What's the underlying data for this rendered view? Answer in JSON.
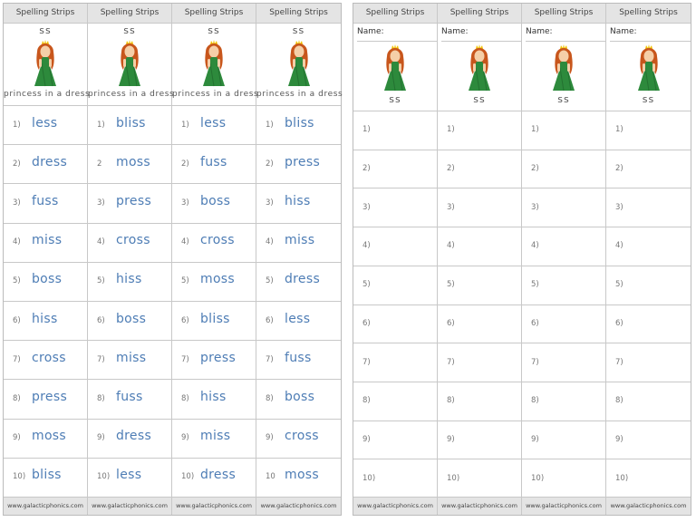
{
  "left_page": {
    "columns": [
      {
        "header": "Spelling Strips",
        "letters": "ss",
        "caption": "princess in a dress",
        "items": [
          {
            "number": "1)",
            "word": "less"
          },
          {
            "number": "2)",
            "word": "dress"
          },
          {
            "number": "3)",
            "word": "fuss"
          },
          {
            "number": "4)",
            "word": "miss"
          },
          {
            "number": "5)",
            "word": "boss"
          },
          {
            "number": "6)",
            "word": "hiss"
          },
          {
            "number": "7)",
            "word": "cross"
          },
          {
            "number": "8)",
            "word": "press"
          },
          {
            "number": "9)",
            "word": "moss"
          },
          {
            "number": "10)",
            "word": "bliss"
          }
        ],
        "footer": "www.galacticphonics.com"
      },
      {
        "header": "Spelling Strips",
        "letters": "ss",
        "caption": "princess in a dress",
        "items": [
          {
            "number": "1)",
            "word": "bliss"
          },
          {
            "number": "2",
            "word": "moss"
          },
          {
            "number": "3)",
            "word": "press"
          },
          {
            "number": "4)",
            "word": "cross"
          },
          {
            "number": "5)",
            "word": "hiss"
          },
          {
            "number": "6)",
            "word": "boss"
          },
          {
            "number": "7)",
            "word": "miss"
          },
          {
            "number": "8)",
            "word": "fuss"
          },
          {
            "number": "9)",
            "word": "dress"
          },
          {
            "number": "10)",
            "word": "less"
          }
        ],
        "footer": "www.galacticphonics.com"
      },
      {
        "header": "Spelling Strips",
        "letters": "ss",
        "caption": "princess in a dress",
        "items": [
          {
            "number": "1)",
            "word": "less"
          },
          {
            "number": "2)",
            "word": "fuss"
          },
          {
            "number": "3)",
            "word": "boss"
          },
          {
            "number": "4)",
            "word": "cross"
          },
          {
            "number": "5)",
            "word": "moss"
          },
          {
            "number": "6)",
            "word": "bliss"
          },
          {
            "number": "7)",
            "word": "press"
          },
          {
            "number": "8)",
            "word": "hiss"
          },
          {
            "number": "9)",
            "word": "miss"
          },
          {
            "number": "10)",
            "word": "dress"
          }
        ],
        "footer": "www.galacticphonics.com"
      },
      {
        "header": "Spelling Strips",
        "letters": "ss",
        "caption": "princess in a dress",
        "items": [
          {
            "number": "1)",
            "word": "bliss"
          },
          {
            "number": "2)",
            "word": "press"
          },
          {
            "number": "3)",
            "word": "hiss"
          },
          {
            "number": "4)",
            "word": "miss"
          },
          {
            "number": "5)",
            "word": "dress"
          },
          {
            "number": "6)",
            "word": "less"
          },
          {
            "number": "7)",
            "word": "fuss"
          },
          {
            "number": "8)",
            "word": "boss"
          },
          {
            "number": "9)",
            "word": "cross"
          },
          {
            "number": "10",
            "word": "moss"
          }
        ],
        "footer": "www.galacticphonics.com"
      }
    ]
  },
  "right_page": {
    "columns": [
      {
        "header": "Spelling Strips",
        "name_label": "Name:",
        "letters": "ss",
        "numbers": [
          "1)",
          "2)",
          "3)",
          "4)",
          "5)",
          "6)",
          "7)",
          "8)",
          "9)",
          "10)"
        ],
        "footer": "www.galacticphonics.com"
      },
      {
        "header": "Spelling Strips",
        "name_label": "Name:",
        "letters": "ss",
        "numbers": [
          "1)",
          "2)",
          "3)",
          "4)",
          "5)",
          "6)",
          "7)",
          "8)",
          "9)",
          "10)"
        ],
        "footer": "www.galacticphonics.com"
      },
      {
        "header": "Spelling Strips",
        "name_label": "Name:",
        "letters": "ss",
        "numbers": [
          "1)",
          "2)",
          "3)",
          "4)",
          "5)",
          "6)",
          "7)",
          "8)",
          "9)",
          "10)"
        ],
        "footer": "www.galacticphonics.com"
      },
      {
        "header": "Spelling Strips",
        "name_label": "Name:",
        "letters": "ss",
        "numbers": [
          "1)",
          "2)",
          "3)",
          "4)",
          "5)",
          "6)",
          "7)",
          "8)",
          "9)",
          "10)"
        ],
        "footer": "www.galacticphonics.com"
      }
    ]
  }
}
